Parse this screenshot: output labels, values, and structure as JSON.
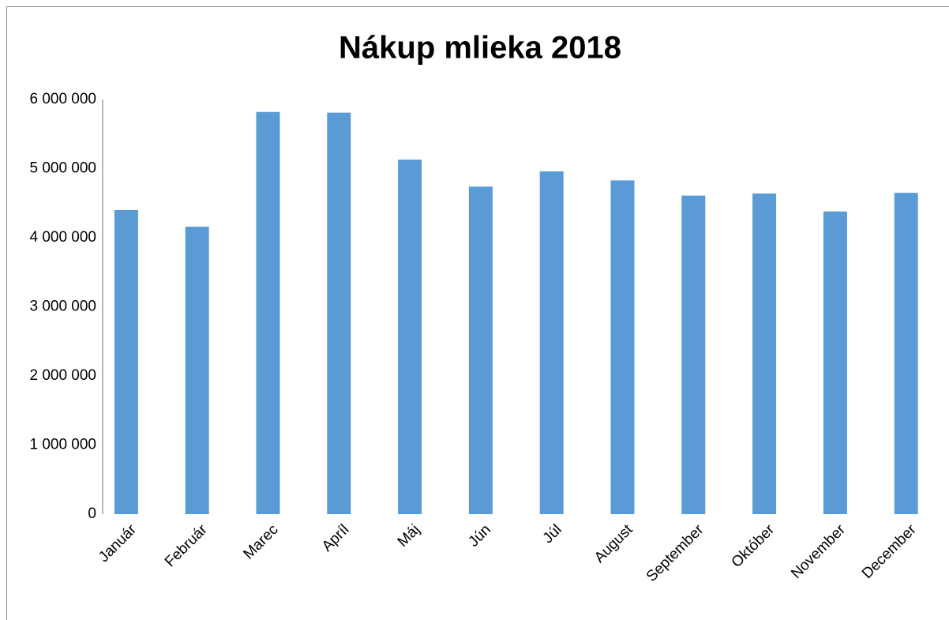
{
  "chart_data": {
    "type": "bar",
    "title": "Nákup mlieka 2018",
    "categories": [
      "Január",
      "Február",
      "Marec",
      "Apríl",
      "Máj",
      "Jún",
      "Júl",
      "August",
      "September",
      "Október",
      "November",
      "December"
    ],
    "values": [
      4400000,
      4160000,
      5820000,
      5810000,
      5130000,
      4740000,
      4960000,
      4830000,
      4610000,
      4640000,
      4380000,
      4650000
    ],
    "color": "#5b9bd5",
    "ylim": [
      0,
      6000000
    ],
    "yticks": [
      0,
      {
        "value": 1000000,
        "label": "1 000 000"
      },
      {
        "value": 2000000,
        "label": "2 000 000"
      },
      {
        "value": 3000000,
        "label": "3 000 000"
      },
      {
        "value": 4000000,
        "label": "4 000 000"
      },
      {
        "value": 5000000,
        "label": "5 000 000"
      },
      {
        "value": 6000000,
        "label": "6 000 000"
      }
    ],
    "grid": true
  }
}
